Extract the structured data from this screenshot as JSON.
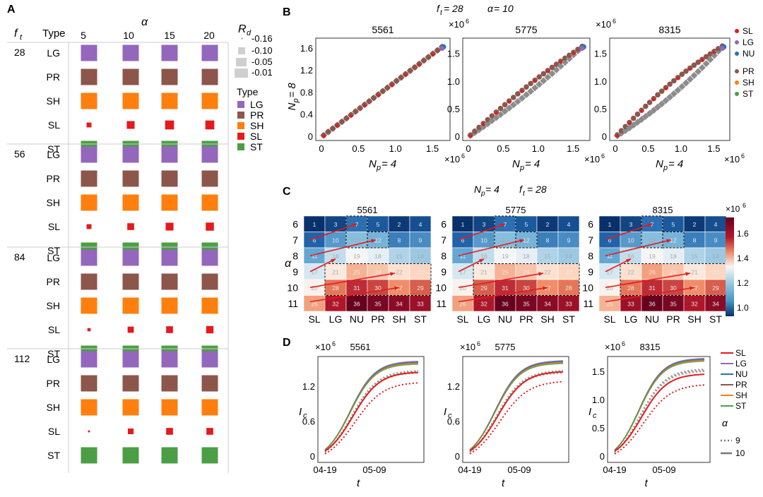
{
  "panel_labels": {
    "a": "A",
    "b": "B",
    "c": "C",
    "d": "D"
  },
  "colors": {
    "LG": "#9467bd",
    "PR": "#8c564b",
    "SH": "#ff7f0e",
    "SL": "#e41a1c",
    "ST": "#4c9e45",
    "NU": "#1f77b4",
    "grey": "#8c8c8c"
  },
  "panelA": {
    "row_header": "f",
    "row_header_sub": "t",
    "type_header": "Type",
    "alpha_header": "α",
    "alpha_values": [
      "5",
      "10",
      "15",
      "20"
    ],
    "rd_legend": {
      "title": "R",
      "title_sub": "d",
      "levels": [
        "-0.16",
        "-0.10",
        "-0.05",
        "-0.01"
      ]
    },
    "type_legend": {
      "title": "Type",
      "items": [
        "LG",
        "PR",
        "SH",
        "SL",
        "ST"
      ]
    },
    "groups": [
      {
        "ft": "28",
        "types": [
          "LG",
          "PR",
          "SH",
          "SL",
          "ST"
        ]
      },
      {
        "ft": "56",
        "types": [
          "LG",
          "PR",
          "SH",
          "SL",
          "ST"
        ]
      },
      {
        "ft": "84",
        "types": [
          "LG",
          "PR",
          "SH",
          "SL",
          "ST"
        ]
      },
      {
        "ft": "112",
        "types": [
          "LG",
          "PR",
          "SH",
          "SL",
          "ST"
        ]
      }
    ],
    "sl_sizes": [
      [
        0.3,
        0.48,
        0.55,
        0.55
      ],
      [
        0.3,
        0.42,
        0.48,
        0.5
      ],
      [
        0.2,
        0.38,
        0.42,
        0.45
      ],
      [
        0.12,
        0.35,
        0.42,
        0.42
      ]
    ]
  },
  "panelB": {
    "header": {
      "ft": "f",
      "ft_sub": "t",
      "ft_val": " = 28",
      "alpha": "α",
      "alpha_val": " = 10"
    },
    "x_label": {
      "main": "N",
      "sub": "p",
      "val": " = 4"
    },
    "y_label": {
      "main": "N",
      "sub": "p",
      "val": " = 8"
    },
    "mult": "×10",
    "mult_exp": "6",
    "legend": [
      "SL",
      "LG",
      "NU",
      "PR",
      "SH",
      "ST"
    ]
  },
  "panelC": {
    "header": {
      "np": "N",
      "np_sub": "p",
      "np_val": " = 4",
      "ft": "f",
      "ft_sub": "t",
      "ft_val": " = 28"
    },
    "alpha_label": "α",
    "colorbar": {
      "mult": "×10",
      "mult_exp": "6",
      "ticks": [
        "1.6",
        "1.4",
        "1.2",
        "1.0"
      ]
    }
  },
  "panelD": {
    "mult": "×10",
    "mult_exp": "6",
    "x_label": "t",
    "y_label": {
      "main": "I",
      "sub": "c"
    },
    "x_ticks": [
      "04-19",
      "05-09"
    ],
    "legend": [
      "SL",
      "LG",
      "NU",
      "PR",
      "SH",
      "ST"
    ],
    "alpha_legend": {
      "title": "α",
      "items": [
        "9",
        "10"
      ]
    }
  },
  "chart_data": [
    {
      "type": "scatter",
      "panel": "B",
      "subplots": [
        {
          "title": "5561",
          "xlabel": "Np = 4",
          "ylabel": "Np = 8",
          "x_ticks": [
            "0",
            "0.5",
            "1.0",
            "1.5"
          ],
          "y_ticks": [
            "0",
            "0.4",
            "0.8",
            "1.2",
            "1.6"
          ],
          "xlim": [
            0,
            1.7
          ],
          "ylim": [
            0,
            1.7
          ],
          "bend": [
            0,
            0.03
          ]
        },
        {
          "title": "5775",
          "xlabel": "Np = 4",
          "ylabel": "",
          "x_ticks": [
            "0",
            "0.5",
            "1.0",
            "1.5"
          ],
          "y_ticks": [
            "0",
            "0.5",
            "1.0",
            "1.5"
          ],
          "xlim": [
            0,
            1.7
          ],
          "ylim": [
            0,
            1.7
          ],
          "bend": [
            0.18,
            0.02
          ]
        },
        {
          "title": "8315",
          "xlabel": "Np = 4",
          "ylabel": "",
          "x_ticks": [
            "0",
            "0.5",
            "1.0",
            "1.5"
          ],
          "y_ticks": [
            "0",
            "0.5",
            "1.0",
            "1.5"
          ],
          "xlim": [
            0,
            1.7
          ],
          "ylim": [
            0,
            1.7
          ],
          "bend": [
            0.3,
            0.05
          ]
        }
      ]
    },
    {
      "type": "heatmap",
      "panel": "C",
      "x_categories": [
        "SL",
        "LG",
        "NU",
        "PR",
        "SH",
        "ST"
      ],
      "y_categories": [
        "6",
        "7",
        "8",
        "9",
        "10",
        "11"
      ],
      "subplots": [
        {
          "title": "5561",
          "ranks": [
            [
              1,
              3,
              7,
              5,
              2,
              4
            ],
            [
              6,
              10,
              13,
              12,
              8,
              9
            ],
            [
              11,
              16,
              19,
              18,
              15,
              14
            ],
            [
              17,
              21,
              25,
              24,
              22,
              23
            ],
            [
              20,
              28,
              31,
              30,
              27,
              29
            ],
            [
              26,
              32,
              36,
              35,
              34,
              33
            ]
          ]
        },
        {
          "title": "5775",
          "ranks": [
            [
              1,
              3,
              7,
              5,
              2,
              4
            ],
            [
              6,
              10,
              13,
              12,
              8,
              9
            ],
            [
              11,
              16,
              19,
              18,
              15,
              14
            ],
            [
              17,
              21,
              25,
              24,
              22,
              23
            ],
            [
              20,
              29,
              31,
              30,
              27,
              28
            ],
            [
              26,
              32,
              36,
              35,
              34,
              33
            ]
          ]
        },
        {
          "title": "8315",
          "ranks": [
            [
              1,
              3,
              7,
              5,
              2,
              4
            ],
            [
              6,
              10,
              13,
              12,
              8,
              9
            ],
            [
              11,
              16,
              19,
              18,
              15,
              14
            ],
            [
              17,
              22,
              26,
              24,
              21,
              23
            ],
            [
              20,
              28,
              31,
              30,
              27,
              29
            ],
            [
              25,
              33,
              36,
              35,
              32,
              34
            ]
          ]
        }
      ],
      "colorbar_range": [
        0.95,
        1.75
      ]
    },
    {
      "type": "line",
      "panel": "D",
      "subplots": [
        {
          "title": "5561",
          "y_ticks": [
            "0",
            "0.6",
            "1.2"
          ],
          "ylim": [
            0,
            1.65
          ],
          "top_solid": 1.52,
          "sl_solid": 1.35,
          "top_dot": 1.4,
          "sl_dot": 1.22
        },
        {
          "title": "5775",
          "y_ticks": [
            "0",
            "0.6",
            "1.2"
          ],
          "ylim": [
            0,
            1.65
          ],
          "top_solid": 1.53,
          "sl_solid": 1.36,
          "top_dot": 1.4,
          "sl_dot": 1.24
        },
        {
          "title": "8315",
          "y_ticks": [
            "0",
            "0.5",
            "1.0",
            "1.5"
          ],
          "ylim": [
            0,
            1.7
          ],
          "top_solid": 1.62,
          "sl_solid": 1.36,
          "top_dot": 1.47,
          "sl_dot": 1.22
        }
      ]
    }
  ]
}
